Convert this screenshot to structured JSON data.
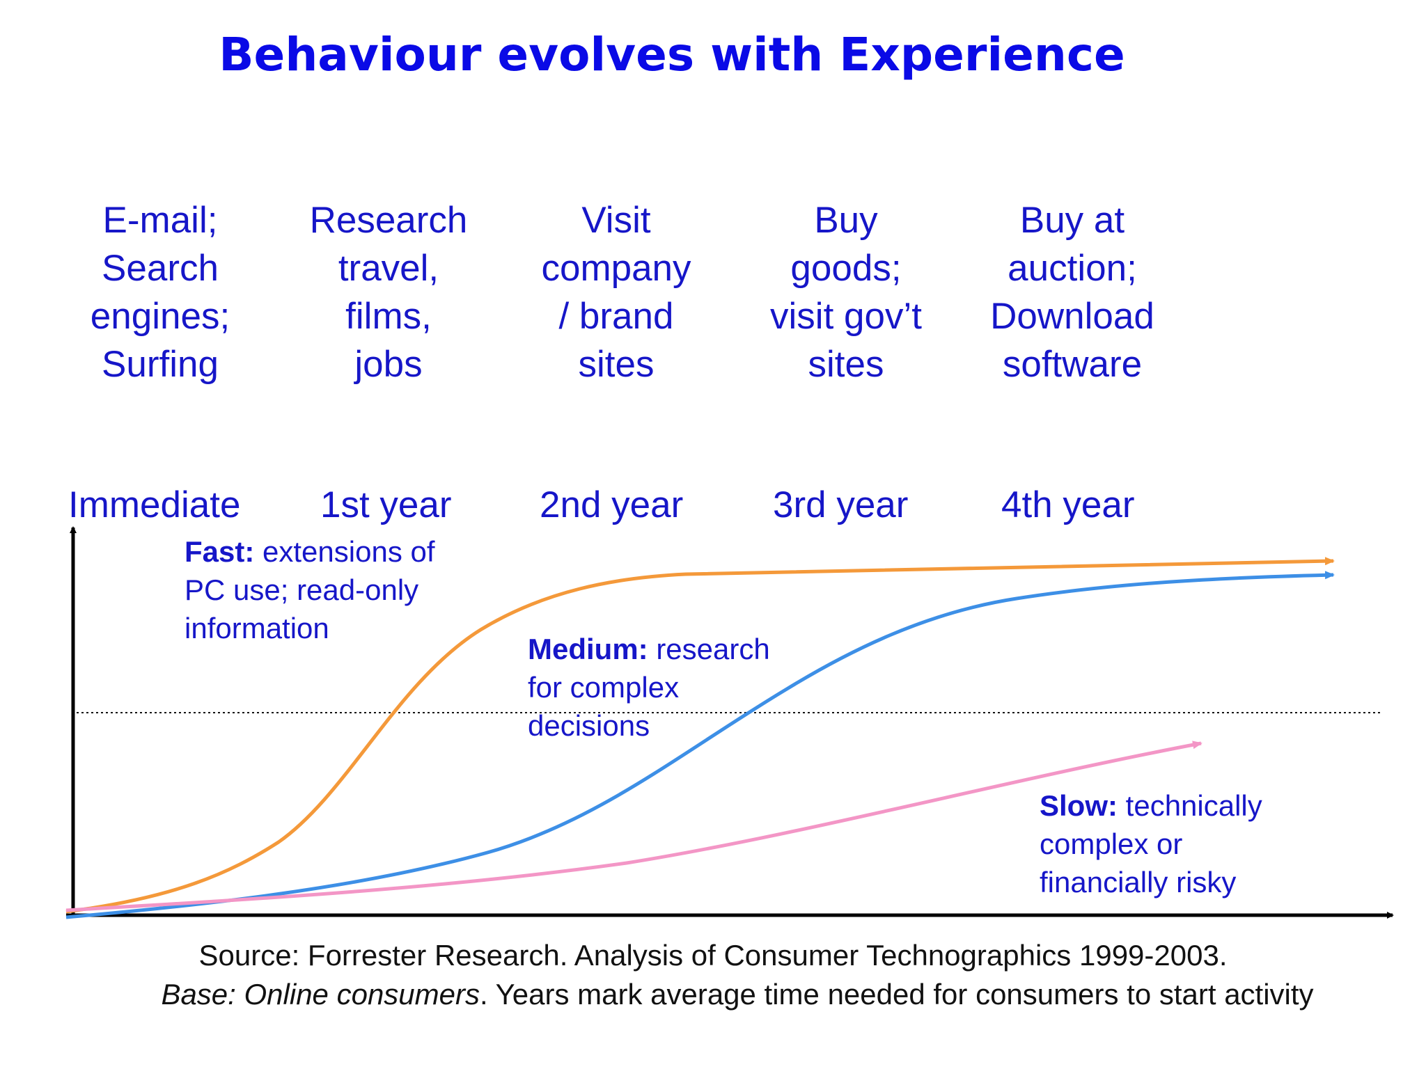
{
  "title": "Behaviour evolves with Experience",
  "activities": [
    "E-mail;\nSearch\nengines;\nSurfing",
    "Research\ntravel,\nfilms,\njobs",
    "Visit\ncompany\n/ brand\nsites",
    "Buy\ngoods;\nvisit gov’t\nsites",
    "Buy at\nauction;\nDownload\nsoftware"
  ],
  "periods": [
    "Immediate",
    "1st year",
    "2nd year",
    "3rd year",
    "4th year"
  ],
  "curves": [
    {
      "id": "fast",
      "label_bold": "Fast:",
      "label_rest": " extensions of\nPC use; read-only\ninformation",
      "color": "#f4993a"
    },
    {
      "id": "medium",
      "label_bold": "Medium:",
      "label_rest": " research\nfor complex\ndecisions",
      "color": "#3d8fe6"
    },
    {
      "id": "slow",
      "label_bold": "Slow:",
      "label_rest": " technically\ncomplex or\nfinancially risky",
      "color": "#f396c6"
    }
  ],
  "source": {
    "line1": "Source: Forrester Research.  Analysis of Consumer Technographics 1999-2003.",
    "line2_italic": "Base: Online consumers",
    "line2_rest": ". Years mark average time needed for consumers to start activity"
  }
}
